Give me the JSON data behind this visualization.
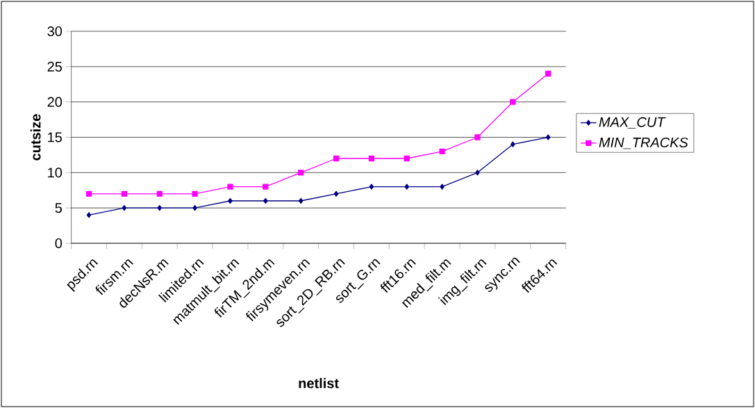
{
  "chart_data": {
    "type": "line",
    "xlabel": "netlist",
    "ylabel": "cutsize",
    "categories": [
      "psd.rn",
      "firsm.rn",
      "decNsR.m",
      "limited.rn",
      "matmult_bit.rn",
      "firTM_2nd.m",
      "firsymeven.rn",
      "sort_2D_RB.rn",
      "sort_G.rn",
      "fft16.rn",
      "med_filt.m",
      "img_filt.rn",
      "sync.rn",
      "fft64.rn"
    ],
    "series": [
      {
        "name": "MAX_CUT",
        "color": "#000080",
        "marker": "diamond",
        "values": [
          4,
          5,
          5,
          5,
          6,
          6,
          6,
          7,
          8,
          8,
          8,
          10,
          14,
          15
        ]
      },
      {
        "name": "MIN_TRACKS",
        "color": "#ff00ff",
        "marker": "square",
        "values": [
          7,
          7,
          7,
          7,
          8,
          8,
          10,
          12,
          12,
          12,
          13,
          15,
          20,
          24
        ]
      }
    ],
    "ylim": [
      0,
      30
    ],
    "yticks": [
      0,
      5,
      10,
      15,
      20,
      25,
      30
    ],
    "grid": "y",
    "legend": "right"
  }
}
